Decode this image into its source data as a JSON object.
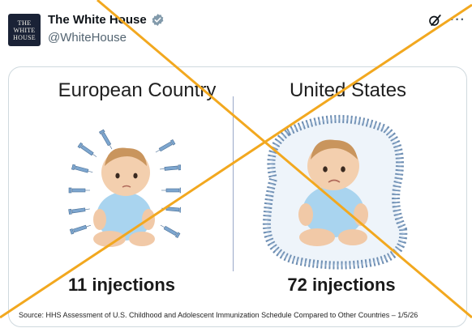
{
  "post": {
    "avatar_text_line1": "THE",
    "avatar_text_line2": "WHITE",
    "avatar_text_line3": "HOUSE",
    "display_name": "The White House",
    "handle": "@WhiteHouse",
    "verified_icon": "verified-badge-icon",
    "grok_icon": "grok-icon",
    "more_label": "···"
  },
  "image": {
    "left_heading": "European Country",
    "right_heading": "United States",
    "left_count": "11 injections",
    "right_count": "72 injections",
    "source": "Source: HHS Assessment of U.S. Childhood and Adolescent Immunization Schedule Compared to Other Countries – 1/5/26"
  },
  "colors": {
    "cross_color": "#f2a81f",
    "baby_shirt": "#a9d4ef",
    "syringe_blue": "#7da6cf",
    "text_secondary": "#536471"
  }
}
